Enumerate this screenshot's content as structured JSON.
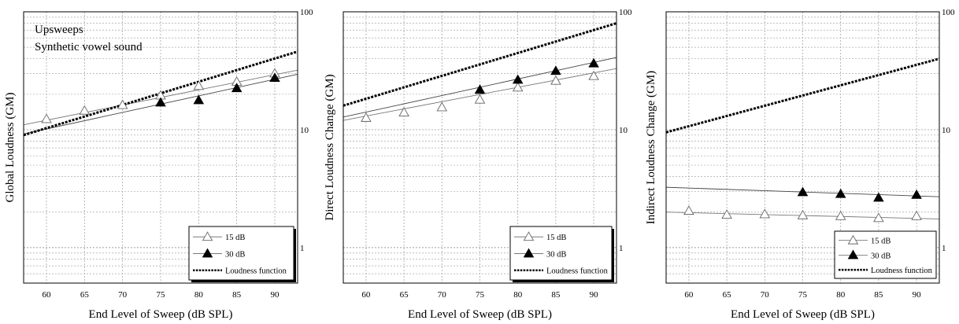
{
  "chart_data": [
    {
      "type": "scatter",
      "xlabel": "End Level of Sweep (dB SPL)",
      "ylabel": "Global Loudness (GM)",
      "xlim": [
        57,
        93
      ],
      "ylim": [
        0.5,
        100
      ],
      "yscale": "log",
      "xticks": [
        60,
        65,
        70,
        75,
        80,
        85,
        90
      ],
      "yticks": [
        1,
        10,
        100
      ],
      "annotations": [
        "Upsweeps",
        "Synthetic vowel sound"
      ],
      "legend_position": "bottom-right",
      "series": [
        {
          "name": "15 dB",
          "marker": "open-triangle",
          "x": [
            60,
            65,
            70,
            75,
            80,
            85,
            90
          ],
          "y": [
            12.3,
            14.5,
            16.2,
            19.5,
            23.5,
            25.5,
            30.0
          ],
          "fit": [
            [
              57,
              11.0
            ],
            [
              93,
              32.0
            ]
          ]
        },
        {
          "name": "30 dB",
          "marker": "filled-triangle",
          "x": [
            75,
            80,
            85,
            90
          ],
          "y": [
            17.0,
            17.8,
            22.5,
            27.5
          ],
          "fit": [
            [
              57,
              9.2
            ],
            [
              93,
              29.5
            ]
          ]
        },
        {
          "name": "Loudness function",
          "style": "dotted",
          "x": [
            57,
            93
          ],
          "y": [
            9.0,
            46.0
          ]
        }
      ]
    },
    {
      "type": "scatter",
      "xlabel": "End Level of Sweep (dB SPL)",
      "ylabel": "Direct Loudness Change (GM)",
      "xlim": [
        57,
        93
      ],
      "ylim": [
        0.5,
        100
      ],
      "yscale": "log",
      "xticks": [
        60,
        65,
        70,
        75,
        80,
        85,
        90
      ],
      "yticks": [
        1,
        10,
        100
      ],
      "legend_position": "bottom-right",
      "series": [
        {
          "name": "15 dB",
          "marker": "open-triangle",
          "x": [
            60,
            65,
            70,
            75,
            80,
            85,
            90
          ],
          "y": [
            12.6,
            14.0,
            15.5,
            18.0,
            22.8,
            26.0,
            28.5
          ],
          "fit": [
            [
              57,
              12.0
            ],
            [
              93,
              33.0
            ]
          ]
        },
        {
          "name": "30 dB",
          "marker": "filled-triangle",
          "x": [
            75,
            80,
            85,
            90
          ],
          "y": [
            21.8,
            26.5,
            31.5,
            36.5
          ],
          "fit": [
            [
              57,
              12.8
            ],
            [
              93,
              41.0
            ]
          ]
        },
        {
          "name": "Loudness function",
          "style": "dotted",
          "x": [
            57,
            93
          ],
          "y": [
            16.0,
            80.0
          ]
        }
      ]
    },
    {
      "type": "scatter",
      "xlabel": "End Level of Sweep (dB SPL)",
      "ylabel": "Indirect Loudness Change (GM)",
      "xlim": [
        57,
        93
      ],
      "ylim": [
        0.5,
        100
      ],
      "yscale": "log",
      "xticks": [
        60,
        65,
        70,
        75,
        80,
        85,
        90
      ],
      "yticks": [
        1,
        10,
        100
      ],
      "legend_position": "bottom-right",
      "series": [
        {
          "name": "15 dB",
          "marker": "open-triangle",
          "x": [
            60,
            65,
            70,
            75,
            80,
            85,
            90
          ],
          "y": [
            2.05,
            1.9,
            1.92,
            1.88,
            1.85,
            1.78,
            1.85
          ],
          "fit": [
            [
              57,
              2.0
            ],
            [
              93,
              1.75
            ]
          ]
        },
        {
          "name": "30 dB",
          "marker": "filled-triangle",
          "x": [
            75,
            80,
            85,
            90
          ],
          "y": [
            2.95,
            2.85,
            2.65,
            2.8
          ],
          "fit": [
            [
              57,
              3.25
            ],
            [
              93,
              2.7
            ]
          ]
        },
        {
          "name": "Loudness function",
          "style": "dotted",
          "x": [
            57,
            93
          ],
          "y": [
            9.5,
            40.0
          ]
        }
      ]
    }
  ]
}
